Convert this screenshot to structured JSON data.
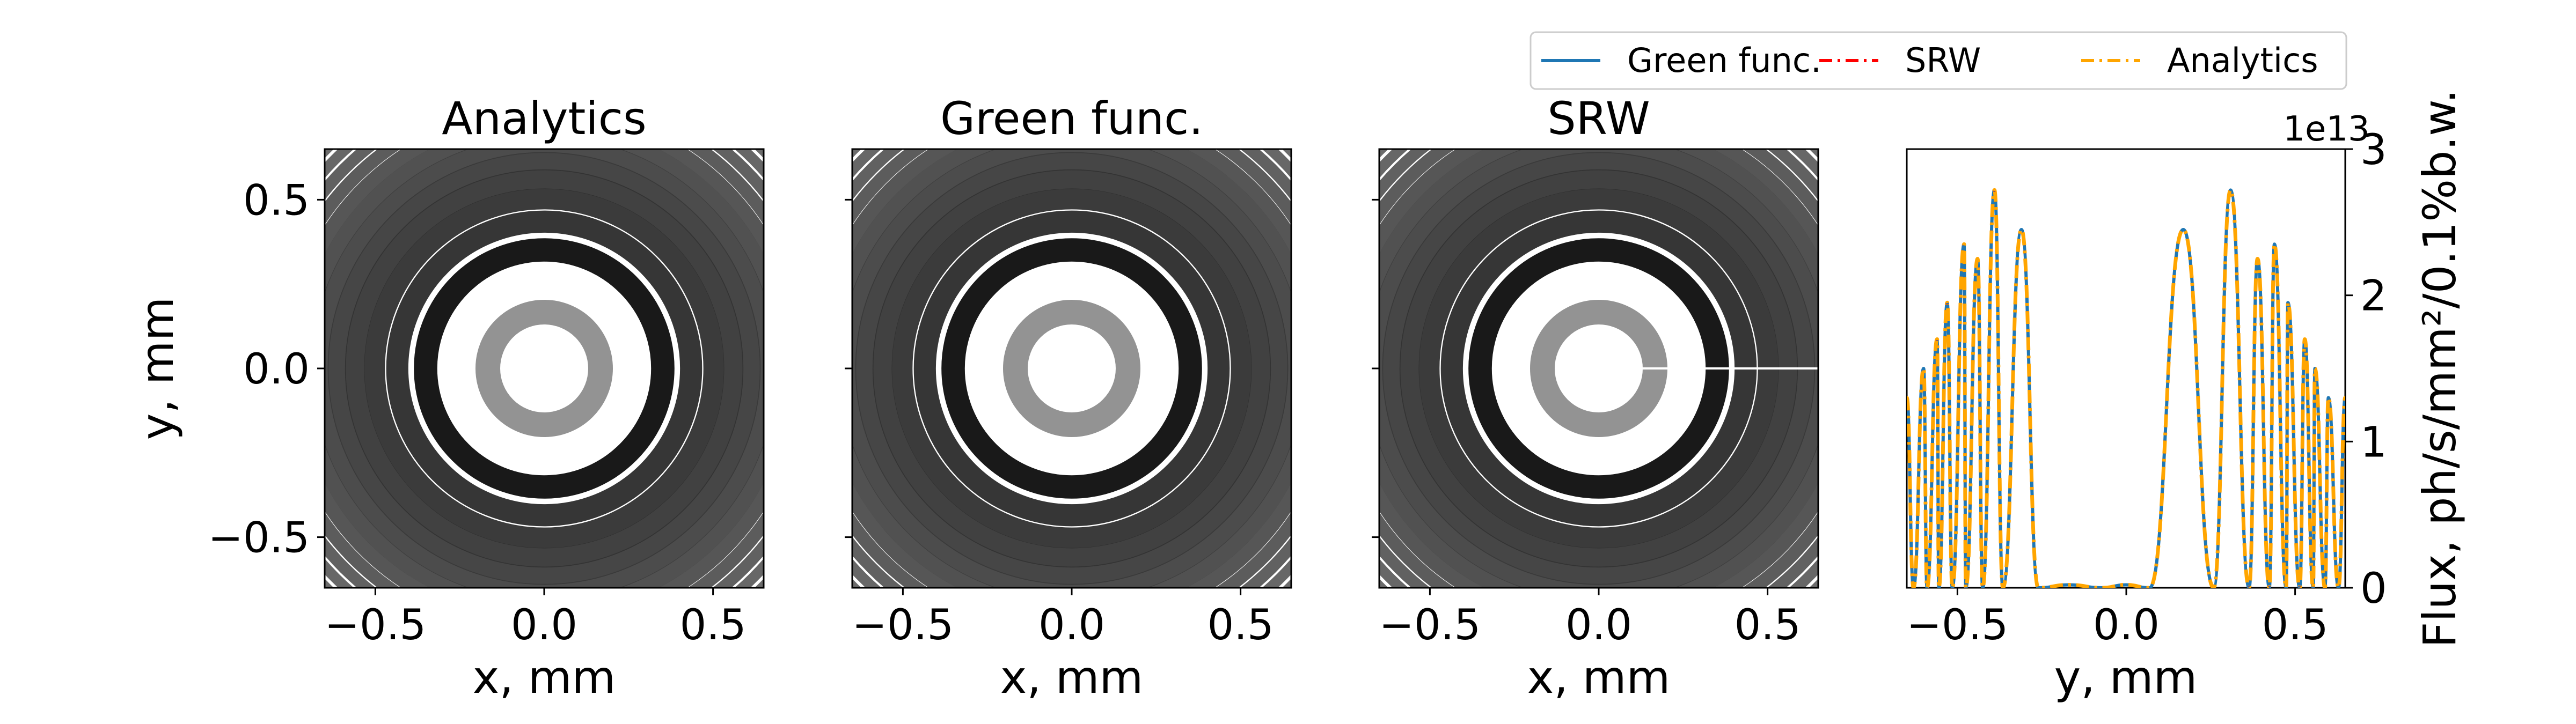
{
  "panels": [
    {
      "title": "Analytics",
      "xlabel": "x, mm",
      "ylabel": "y, mm"
    },
    {
      "title": "Green func.",
      "xlabel": "x, mm"
    },
    {
      "title": "SRW",
      "xlabel": "x, mm"
    }
  ],
  "image_axes": {
    "xlim": [
      -0.65,
      0.65
    ],
    "ylim": [
      -0.65,
      0.65
    ],
    "x_ticks": [
      -0.5,
      0.0,
      0.5
    ],
    "x_tick_labels": [
      "−0.5",
      "0.0",
      "0.5"
    ],
    "y_ticks": [
      0.5,
      0.0,
      -0.5
    ],
    "y_tick_labels": [
      "0.5",
      "0.0",
      "−0.5"
    ],
    "colormap": "gray_r"
  },
  "chart_data": {
    "type": "line",
    "title": "",
    "xlabel": "y, mm",
    "ylabel": "Flux, ph/s/mm²/0.1%b.w.",
    "y_axis_side": "right",
    "xlim": [
      -0.65,
      0.65
    ],
    "ylim": [
      0,
      3
    ],
    "x_ticks": [
      -0.5,
      0.0,
      0.5
    ],
    "x_tick_labels": [
      "−0.5",
      "0.0",
      "0.5"
    ],
    "y_ticks": [
      0,
      1,
      2,
      3
    ],
    "y_tick_labels": [
      "0",
      "1",
      "2",
      "3"
    ],
    "y_multiplier": "1e13",
    "series": [
      {
        "name": "Green func.",
        "color": "#1f77b4",
        "style": "solid"
      },
      {
        "name": "SRW",
        "color": "#ff0000",
        "style": "dashdot"
      },
      {
        "name": "Analytics",
        "color": "#ffa500",
        "style": "dashdot"
      }
    ],
    "legend": {
      "position": "top-right",
      "columns": 3,
      "entries": [
        "Green func.",
        "SRW",
        "Analytics"
      ]
    },
    "profile": {
      "x": [
        -0.65,
        -0.63,
        -0.6,
        -0.59,
        -0.56,
        -0.555,
        -0.53,
        -0.515,
        -0.48,
        -0.475,
        -0.44,
        -0.425,
        -0.39,
        -0.365,
        -0.31,
        -0.26,
        -0.17,
        -0.07,
        0.0,
        0.07,
        0.17,
        0.26,
        0.31,
        0.365,
        0.39,
        0.425,
        0.44,
        0.475,
        0.48,
        0.515,
        0.53,
        0.555,
        0.56,
        0.59,
        0.6,
        0.63,
        0.65
      ],
      "y": [
        1.3,
        0.0,
        1.5,
        0.0,
        1.7,
        0.0,
        1.95,
        0.0,
        2.35,
        0.0,
        2.25,
        0.0,
        2.72,
        0.0,
        2.45,
        0.0,
        0.02,
        0.0,
        0.02,
        0.0,
        2.45,
        0.0,
        2.72,
        0.0,
        2.25,
        0.0,
        2.35,
        0.0,
        1.95,
        0.0,
        1.7,
        0.0,
        1.5,
        0.0,
        1.3,
        0.0,
        1.3
      ]
    }
  }
}
